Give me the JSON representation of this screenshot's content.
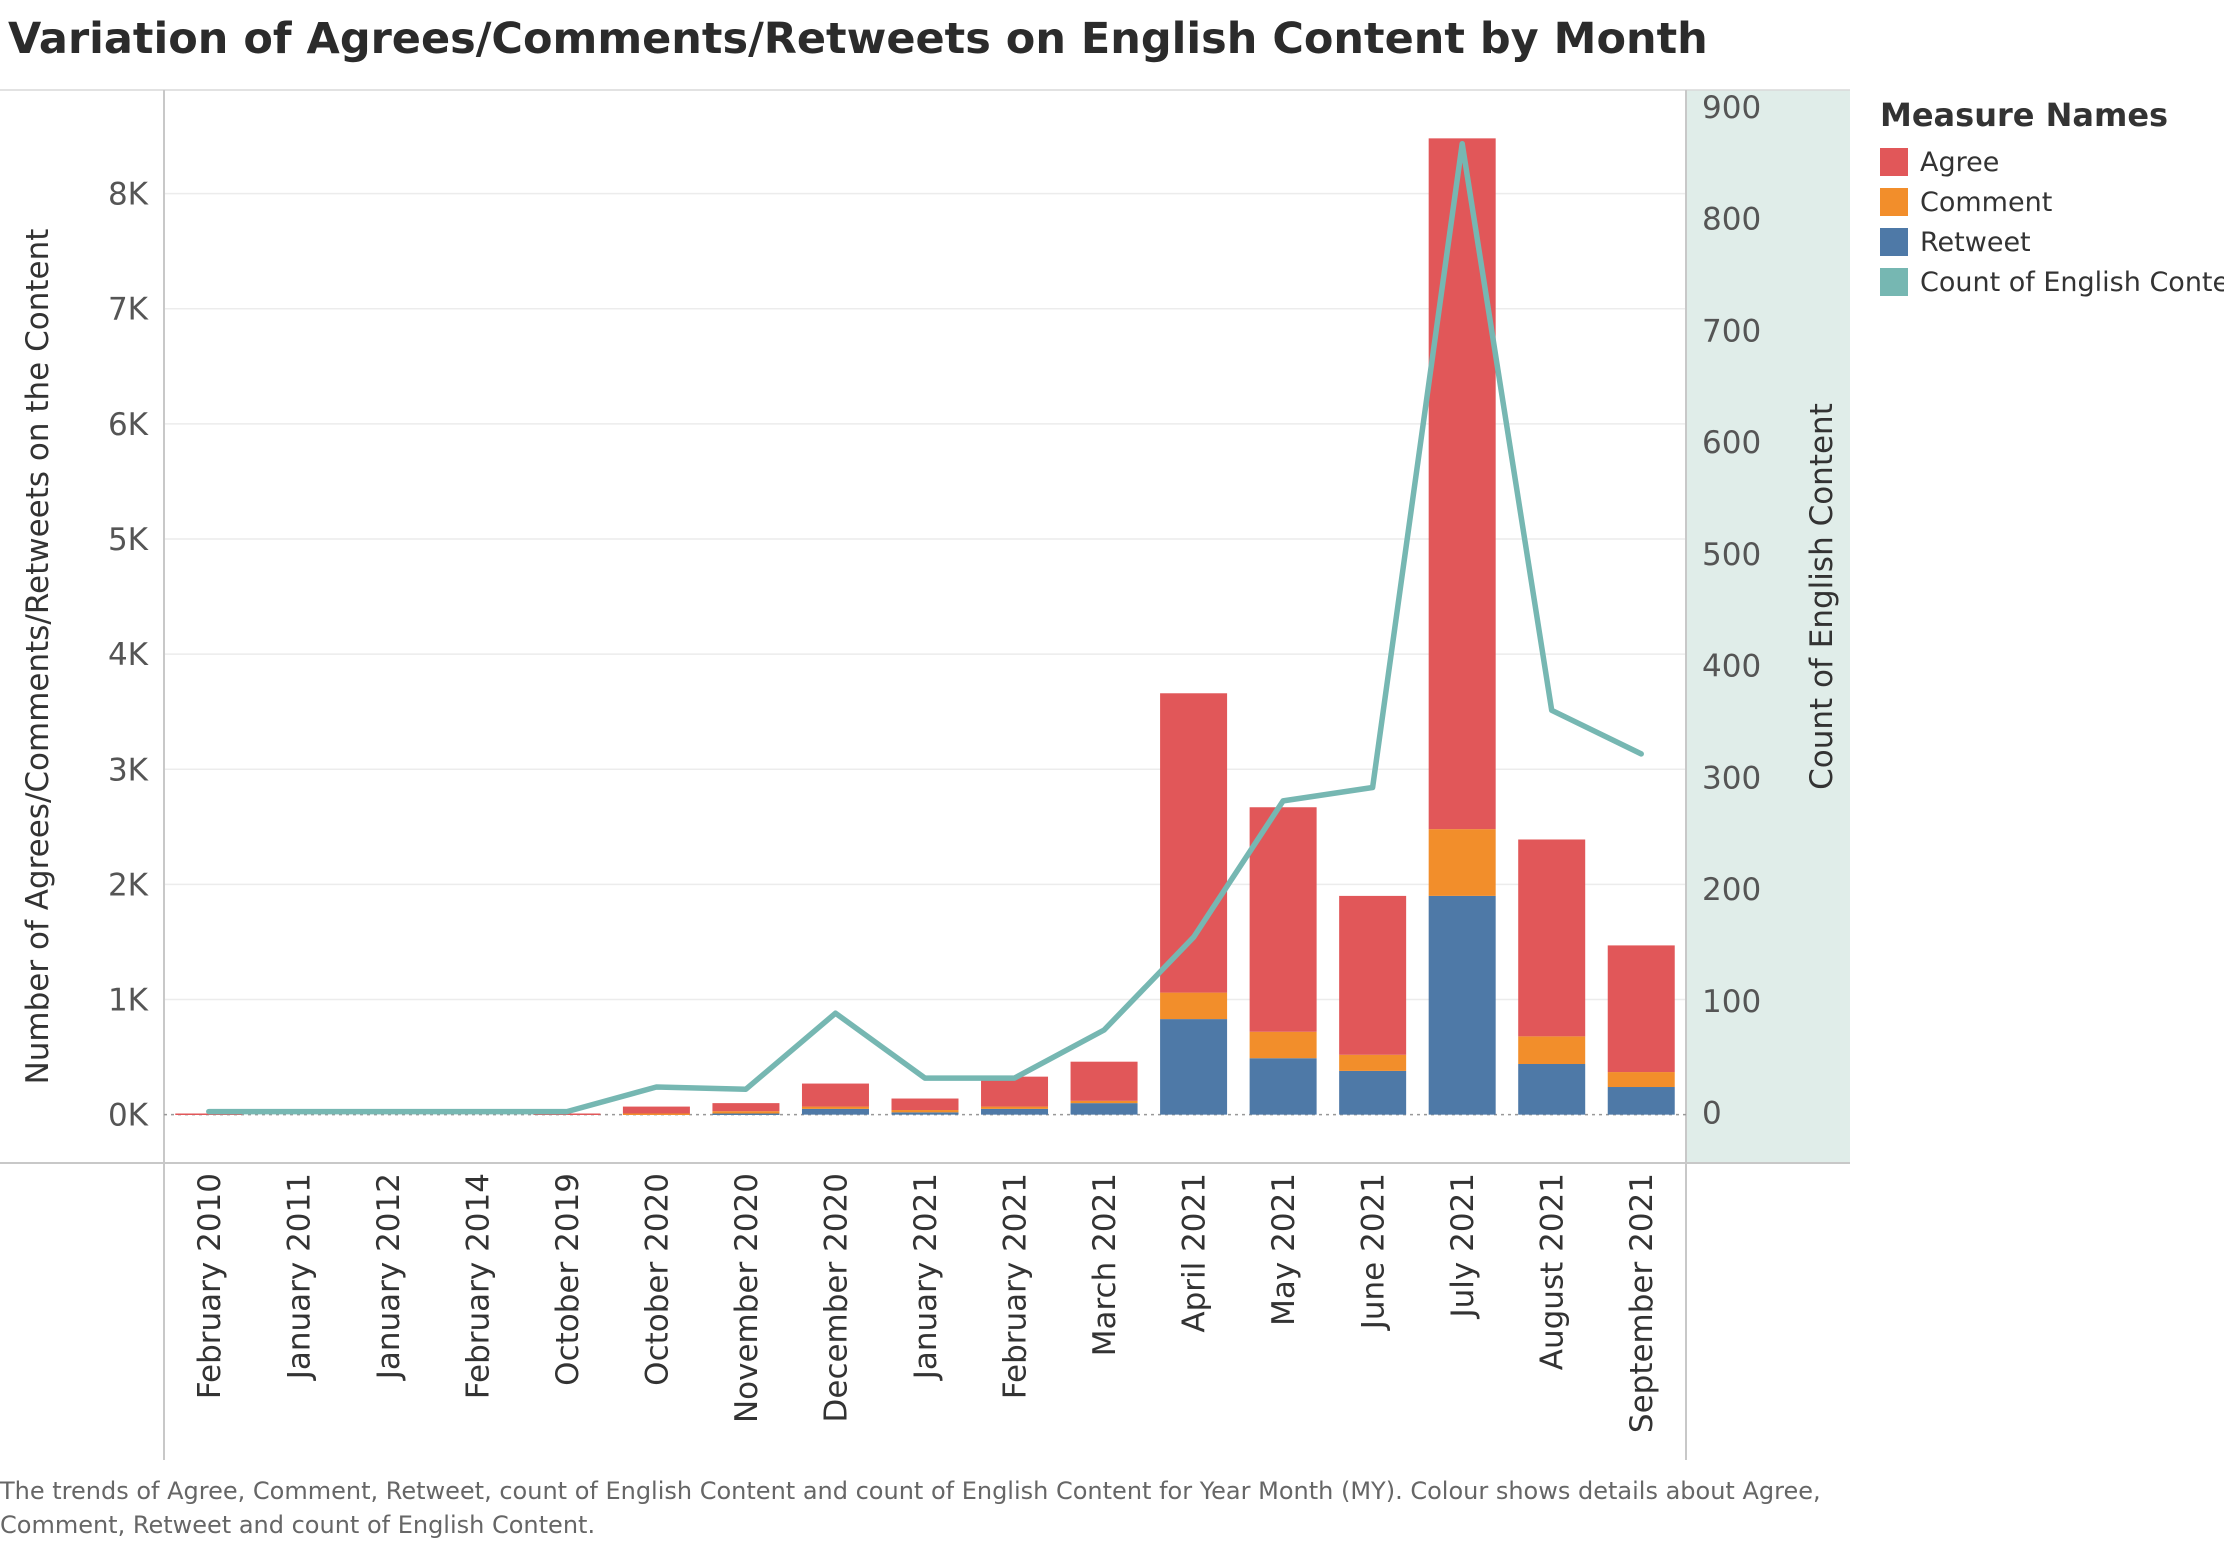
{
  "title": "Variation of Agrees/Comments/Retweets on English Content by Month",
  "caption": "The trends of Agree, Comment, Retweet, count of English Content and count of English Content for Year Month (MY).  Colour shows details about Agree, Comment, Retweet and count of English Content.",
  "legend": {
    "title": "Measure Names",
    "items": [
      {
        "label": "Agree",
        "color": "#e15759"
      },
      {
        "label": "Comment",
        "color": "#f28e2b"
      },
      {
        "label": "Retweet",
        "color": "#4e79a7"
      },
      {
        "label": "Count of English Content",
        "color": "#76b7b2"
      }
    ]
  },
  "chart_data": {
    "type": "bar",
    "title": "Variation of Agrees/Comments/Retweets on English Content by Month",
    "categories": [
      "February 2010",
      "January 2011",
      "January 2012",
      "February 2014",
      "October 2019",
      "October 2020",
      "November 2020",
      "December 2020",
      "January 2021",
      "February 2021",
      "March 2021",
      "April 2021",
      "May 2021",
      "June 2021",
      "July 2021",
      "August 2021",
      "September 2021"
    ],
    "stacked": true,
    "series": [
      {
        "name": "Retweet",
        "type": "bar",
        "axis": "left",
        "color": "#4e79a7",
        "values": [
          0,
          0,
          0,
          0,
          0,
          0,
          10,
          50,
          20,
          50,
          100,
          830,
          490,
          380,
          1900,
          440,
          240
        ]
      },
      {
        "name": "Comment",
        "type": "bar",
        "axis": "left",
        "color": "#f28e2b",
        "values": [
          0,
          0,
          0,
          0,
          0,
          10,
          20,
          20,
          20,
          20,
          20,
          230,
          230,
          140,
          580,
          240,
          130
        ]
      },
      {
        "name": "Agree",
        "type": "bar",
        "axis": "left",
        "color": "#e15759",
        "values": [
          10,
          0,
          0,
          0,
          10,
          60,
          70,
          200,
          100,
          260,
          340,
          2600,
          1950,
          1380,
          6000,
          1710,
          1100
        ]
      },
      {
        "name": "Count of English Content",
        "type": "line",
        "axis": "right",
        "color": "#76b7b2",
        "values": [
          1,
          1,
          1,
          1,
          1,
          23,
          21,
          89,
          31,
          31,
          74,
          157,
          279,
          291,
          867,
          360,
          321
        ]
      }
    ],
    "ylabel": "Number of Agrees/Comments/Retweets on the Content",
    "ylim": [
      -420,
      8900
    ],
    "yticks": [
      0,
      1000,
      2000,
      3000,
      4000,
      5000,
      6000,
      7000,
      8000
    ],
    "ytick_labels": [
      "0K",
      "1K",
      "2K",
      "3K",
      "4K",
      "5K",
      "6K",
      "7K",
      "8K"
    ],
    "y2label": "Count of English Content",
    "y2lim": [
      -45,
      915
    ],
    "y2ticks": [
      0,
      100,
      200,
      300,
      400,
      500,
      600,
      700,
      800,
      900
    ],
    "y2tick_labels": [
      "0",
      "100",
      "200",
      "300",
      "400",
      "500",
      "600",
      "700",
      "800",
      "900"
    ],
    "legend_position": "right"
  }
}
